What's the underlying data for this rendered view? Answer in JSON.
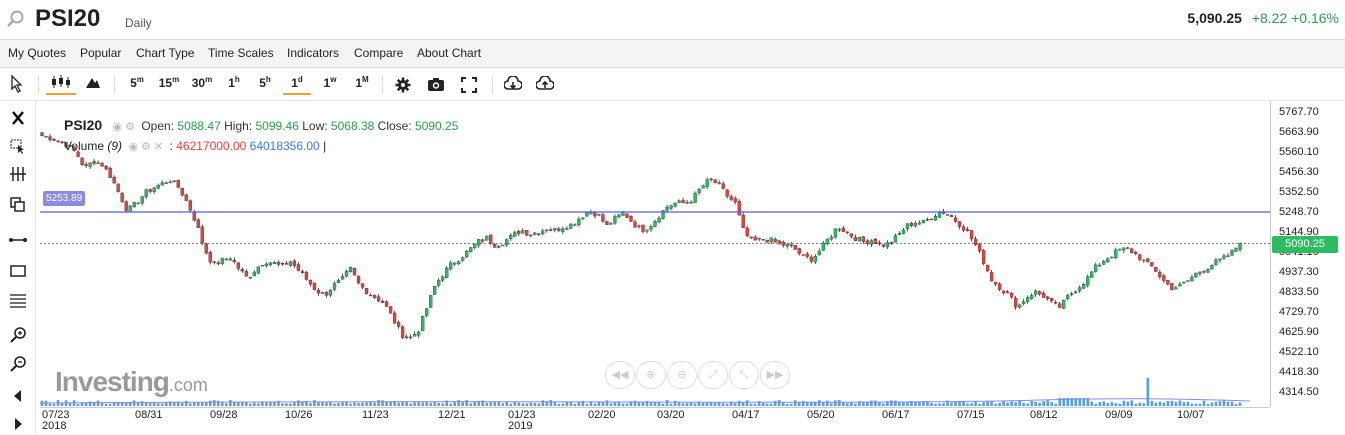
{
  "header": {
    "symbol": "PSI20",
    "interval": "Daily",
    "last": "5,090.25",
    "change": "+8.22 +0.16%"
  },
  "menu": [
    "My Quotes",
    "Popular",
    "Chart Type",
    "Time Scales",
    "Indicators",
    "Compare",
    "About Chart"
  ],
  "toolbar": {
    "timeframes": [
      {
        "main": "5",
        "sup": "m"
      },
      {
        "main": "15",
        "sup": "m"
      },
      {
        "main": "30",
        "sup": "m"
      },
      {
        "main": "1",
        "sup": "h"
      },
      {
        "main": "5",
        "sup": "h"
      },
      {
        "main": "1",
        "sup": "d"
      },
      {
        "main": "1",
        "sup": "w"
      },
      {
        "main": "1",
        "sup": "M"
      }
    ],
    "active_timeframe": "1d"
  },
  "legend": {
    "symbol": "PSI20",
    "open_label": "Open:",
    "open": "5088.47",
    "high_label": "High:",
    "high": "5099.46",
    "low_label": "Low:",
    "low": "5068.38",
    "close_label": "Close:",
    "close": "5090.25",
    "volume_label": "Volume",
    "volume_period": "(9)",
    "volume_value": "46217000.00",
    "volume_ma": "64018356.00",
    "volume_suffix": "|"
  },
  "horizontal_line_label": "5253.89",
  "price_tag": "5090.25",
  "logo": {
    "main": "Investing",
    "suffix": ".com"
  },
  "colors": {
    "up": "#2ebc63",
    "down": "#e2433f",
    "hline": "#5b5bd6",
    "volume": "#3a8fd5"
  },
  "chart_data": {
    "type": "candlestick",
    "y_ticks": [
      "5767.70",
      "5663.90",
      "5560.10",
      "5456.30",
      "5352.50",
      "5248.70",
      "5144.90",
      "5041.10",
      "4937.30",
      "4833.50",
      "4729.70",
      "4625.90",
      "4522.10",
      "4418.30",
      "4314.50"
    ],
    "x_ticks": [
      {
        "label": "07/23",
        "sub": "2018"
      },
      {
        "label": "08/31",
        "sub": ""
      },
      {
        "label": "09/28",
        "sub": ""
      },
      {
        "label": "10/26",
        "sub": ""
      },
      {
        "label": "11/23",
        "sub": ""
      },
      {
        "label": "12/21",
        "sub": ""
      },
      {
        "label": "01/23",
        "sub": "2019"
      },
      {
        "label": "02/20",
        "sub": ""
      },
      {
        "label": "03/20",
        "sub": ""
      },
      {
        "label": "04/17",
        "sub": ""
      },
      {
        "label": "05/20",
        "sub": ""
      },
      {
        "label": "06/17",
        "sub": ""
      },
      {
        "label": "07/15",
        "sub": ""
      },
      {
        "label": "08/12",
        "sub": ""
      },
      {
        "label": "09/09",
        "sub": ""
      },
      {
        "label": "10/07",
        "sub": ""
      }
    ],
    "ylim": [
      4314.5,
      5767.7
    ],
    "horizontal_line": 5253.89,
    "last_close": 5090.25,
    "close_path": [
      5650,
      5640,
      5620,
      5600,
      5560,
      5480,
      5520,
      5500,
      5440,
      5350,
      5260,
      5300,
      5350,
      5380,
      5400,
      5420,
      5380,
      5300,
      5200,
      5060,
      4980,
      5000,
      5020,
      4960,
      4910,
      4960,
      5000,
      4990,
      4970,
      5000,
      4950,
      4900,
      4850,
      4820,
      4870,
      4900,
      4960,
      4880,
      4840,
      4810,
      4780,
      4700,
      4620,
      4600,
      4640,
      4760,
      4880,
      4940,
      4990,
      5020,
      5060,
      5100,
      5120,
      5080,
      5100,
      5130,
      5160,
      5140,
      5150,
      5170,
      5160,
      5180,
      5190,
      5230,
      5260,
      5240,
      5180,
      5220,
      5250,
      5200,
      5160,
      5180,
      5230,
      5280,
      5300,
      5300,
      5320,
      5380,
      5420,
      5400,
      5340,
      5300,
      5150,
      5100,
      5110,
      5110,
      5090,
      5080,
      5060,
      5020,
      5010,
      5060,
      5120,
      5180,
      5150,
      5120,
      5100,
      5110,
      5080,
      5090,
      5130,
      5180,
      5200,
      5200,
      5230,
      5260,
      5240,
      5200,
      5160,
      5090,
      5000,
      4900,
      4860,
      4820,
      4760,
      4810,
      4840,
      4820,
      4780,
      4760,
      4820,
      4860,
      4900,
      4960,
      5000,
      5030,
      5060,
      5060,
      5030,
      4990,
      4960,
      4900,
      4860,
      4870,
      4900,
      4940,
      4960,
      4990,
      5010,
      5040,
      5090
    ]
  }
}
